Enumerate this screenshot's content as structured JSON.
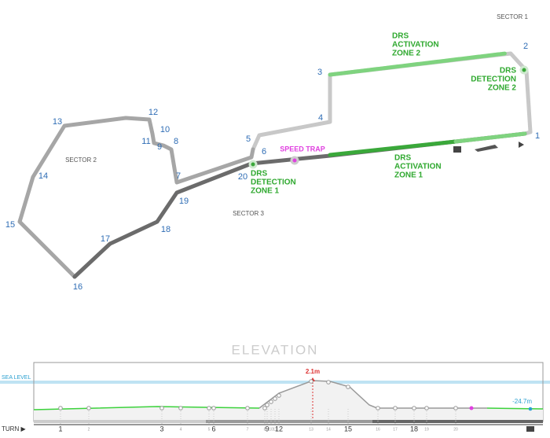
{
  "map": {
    "sectors": [
      "SECTOR 1",
      "SECTOR 2",
      "SECTOR 3"
    ],
    "turns": [
      "1",
      "2",
      "3",
      "4",
      "5",
      "6",
      "7",
      "8",
      "9",
      "10",
      "11",
      "12",
      "13",
      "14",
      "15",
      "16",
      "17",
      "18",
      "19",
      "20"
    ],
    "drs_activation_1": [
      "DRS",
      "ACTIVATION",
      "ZONE 1"
    ],
    "drs_activation_2": [
      "DRS",
      "ACTIVATION",
      "ZONE 2"
    ],
    "drs_detection_1": [
      "DRS",
      "DETECTION",
      "ZONE 1"
    ],
    "drs_detection_2": [
      "DRS",
      "DETECTION",
      "ZONE 2"
    ],
    "speed_trap": "SPEED TRAP"
  },
  "elevation": {
    "title": "ELEVATION",
    "sea_level": "SEA LEVEL",
    "max_label": "2.1m",
    "min_label": "-24.7m",
    "axis_label": "TURN ▶"
  }
}
